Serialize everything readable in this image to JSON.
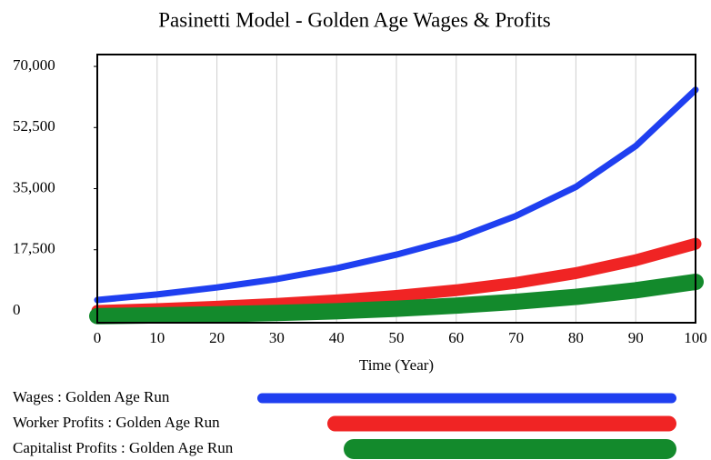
{
  "chart_data": {
    "type": "line",
    "title": "Pasinetti Model - Golden Age Wages & Profits",
    "x_label": "Time (Year)",
    "x": [
      0,
      10,
      20,
      30,
      40,
      50,
      60,
      70,
      80,
      90,
      100
    ],
    "series": [
      {
        "name": "Wages : Golden Age Run",
        "color": "#1f3ff0",
        "values": [
          3100,
          4700,
          6700,
          9100,
          12200,
          16100,
          20700,
          27200,
          35500,
          47200,
          63300
        ]
      },
      {
        "name": "Worker Profits : Golden Age Run",
        "color": "#f02424",
        "values": [
          0,
          500,
          1200,
          2000,
          3000,
          4300,
          5900,
          8000,
          10800,
          14500,
          19200
        ]
      },
      {
        "name": "Capitalist Profits : Golden Age Run",
        "color": "#138a2c",
        "values": [
          -1500,
          -1300,
          -1000,
          -600,
          -100,
          600,
          1500,
          2600,
          4000,
          5900,
          8300
        ]
      }
    ],
    "xlim": [
      0,
      100
    ],
    "xticks": [
      0,
      10,
      20,
      30,
      40,
      50,
      60,
      70,
      80,
      90,
      100
    ],
    "ylim": [
      -3400,
      73400
    ],
    "yticks": [
      0,
      {
        "value": 17500,
        "label": "17,500"
      },
      {
        "value": 35000,
        "label": "35,000"
      },
      {
        "value": 52500,
        "label": "52,500"
      },
      {
        "value": 70000,
        "label": "70,000"
      }
    ],
    "grid": true
  }
}
